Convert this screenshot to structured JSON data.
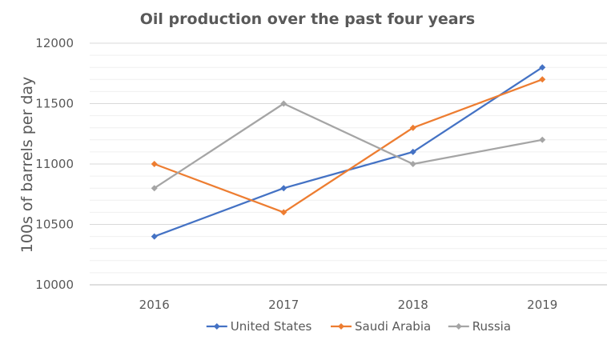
{
  "chart_data": {
    "type": "line",
    "title": "Oil production over the past four years",
    "xlabel": "",
    "ylabel": "100s of barrels per day",
    "categories": [
      "2016",
      "2017",
      "2018",
      "2019"
    ],
    "ylim": [
      10000,
      12000
    ],
    "yticks": [
      10000,
      10500,
      11000,
      11500,
      12000
    ],
    "minor_step": 100,
    "grid": true,
    "legend_position": "bottom",
    "series": [
      {
        "name": "United States",
        "color": "#4472c4",
        "values": [
          10400,
          10800,
          11100,
          11800
        ]
      },
      {
        "name": "Saudi Arabia",
        "color": "#ed7d31",
        "values": [
          11000,
          10600,
          11300,
          11700
        ]
      },
      {
        "name": "Russia",
        "color": "#a5a5a5",
        "values": [
          10800,
          11500,
          11000,
          11200
        ]
      }
    ]
  }
}
